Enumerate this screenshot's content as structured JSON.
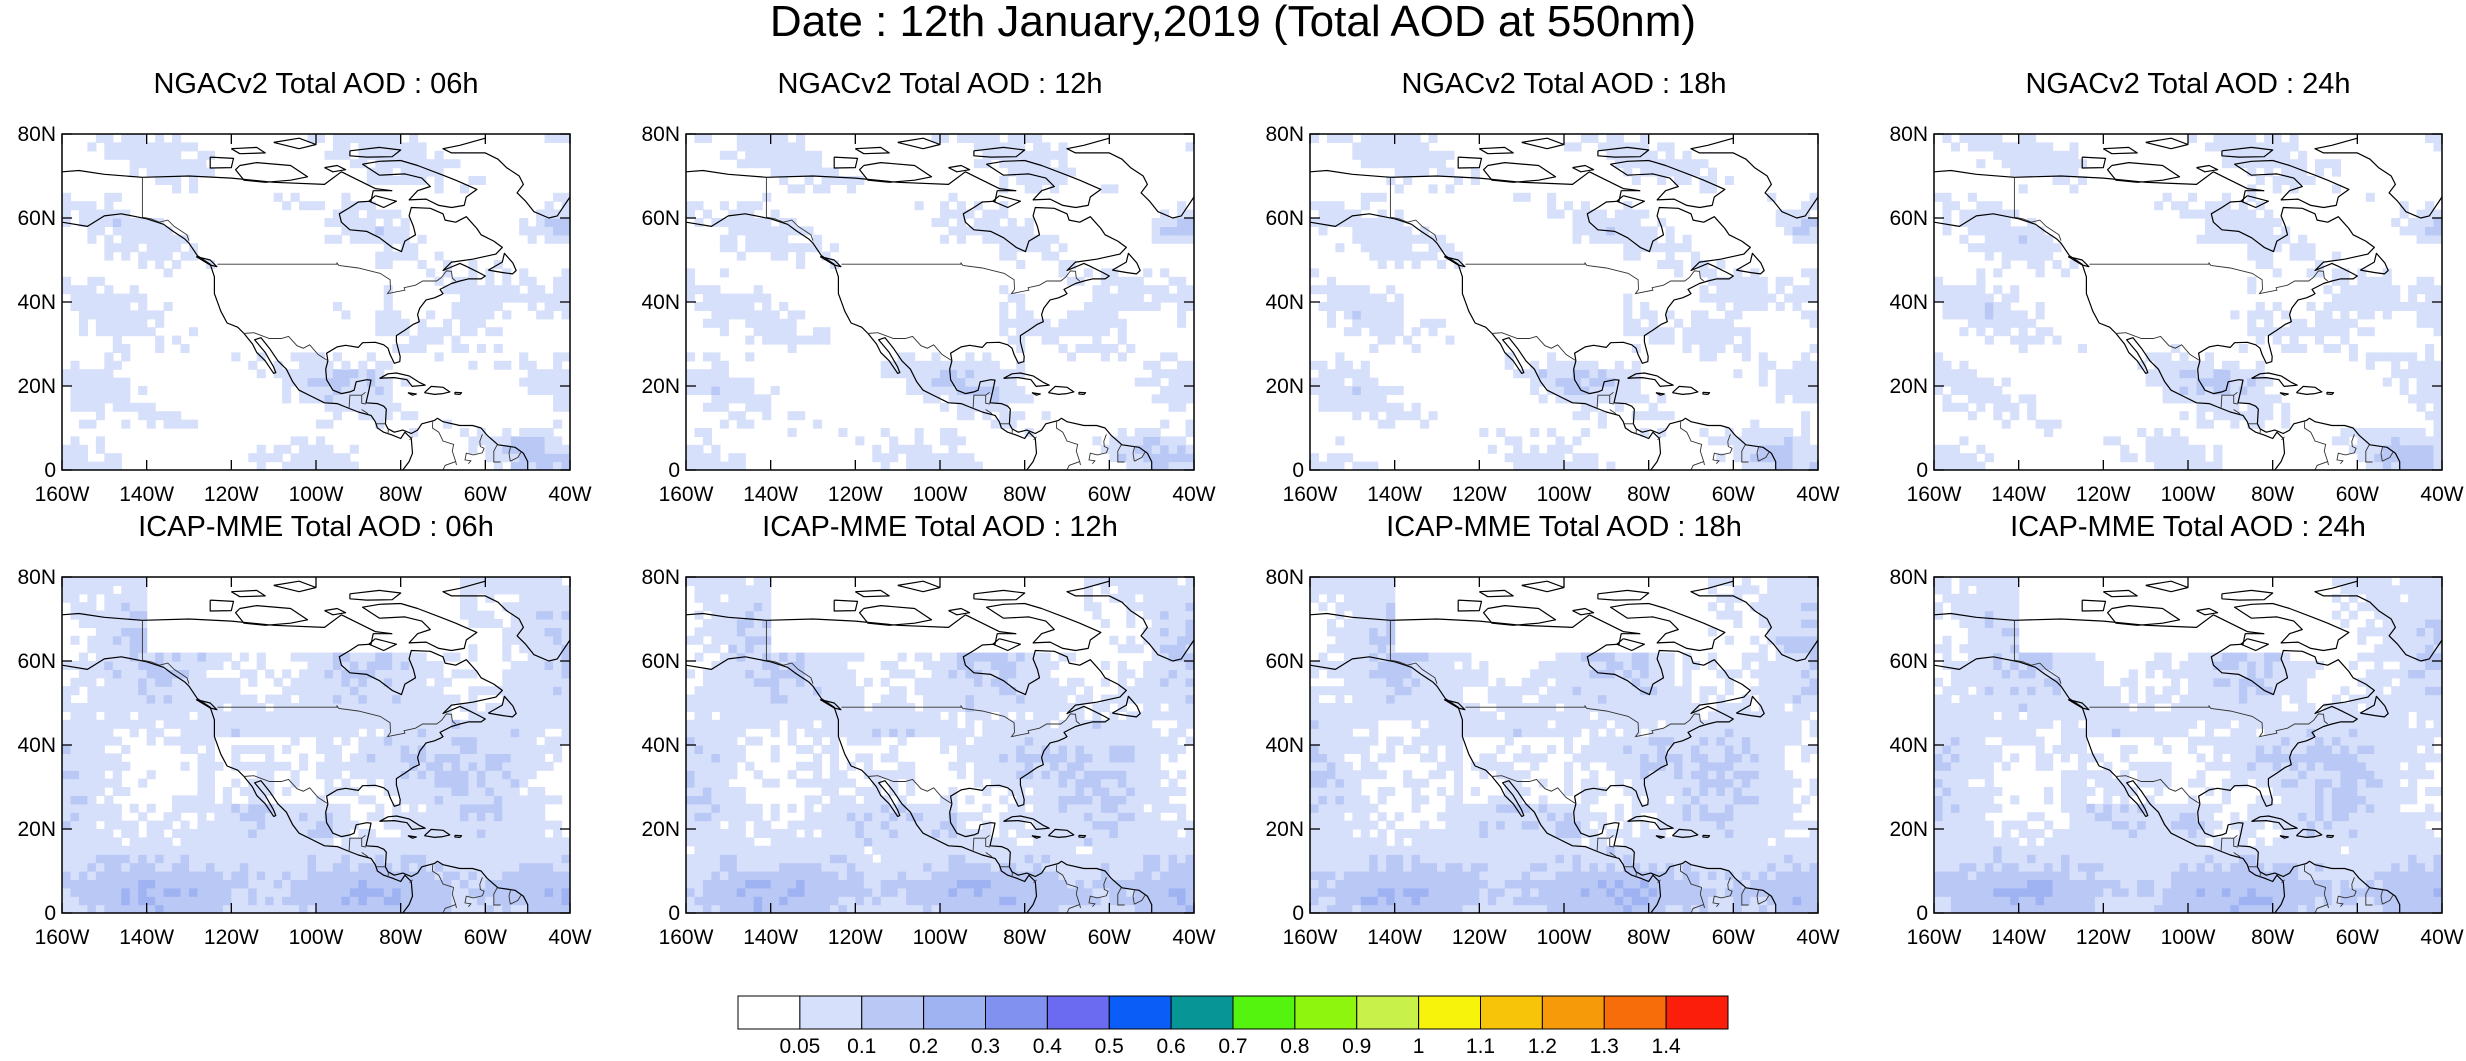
{
  "title": "Date : 12th January,2019 (Total AOD at 550nm)",
  "panels": [
    {
      "title": "NGACv2 Total AOD : 06h",
      "row": 0,
      "col": 0,
      "seed": 11,
      "model": "ngac"
    },
    {
      "title": "NGACv2 Total AOD : 12h",
      "row": 0,
      "col": 1,
      "seed": 23,
      "model": "ngac"
    },
    {
      "title": "NGACv2 Total AOD : 18h",
      "row": 0,
      "col": 2,
      "seed": 37,
      "model": "ngac"
    },
    {
      "title": "NGACv2 Total AOD : 24h",
      "row": 0,
      "col": 3,
      "seed": 41,
      "model": "ngac"
    },
    {
      "title": "ICAP-MME Total AOD : 06h",
      "row": 1,
      "col": 0,
      "seed": 53,
      "model": "icap"
    },
    {
      "title": "ICAP-MME Total AOD : 12h",
      "row": 1,
      "col": 1,
      "seed": 67,
      "model": "icap"
    },
    {
      "title": "ICAP-MME Total AOD : 18h",
      "row": 1,
      "col": 2,
      "seed": 71,
      "model": "icap"
    },
    {
      "title": "ICAP-MME Total AOD : 24h",
      "row": 1,
      "col": 3,
      "seed": 89,
      "model": "icap"
    }
  ],
  "axes": {
    "lon_ticks": [
      "160W",
      "140W",
      "120W",
      "100W",
      "80W",
      "60W",
      "40W"
    ],
    "lat_ticks": [
      "80N",
      "60N",
      "40N",
      "20N",
      "0"
    ],
    "lon_range": [
      -160,
      -40
    ],
    "lat_range": [
      0,
      80
    ]
  },
  "colorbar": {
    "labels": [
      "0.05",
      "0.1",
      "0.2",
      "0.3",
      "0.4",
      "0.5",
      "0.6",
      "0.7",
      "0.8",
      "0.9",
      "1",
      "1.1",
      "1.2",
      "1.3",
      "1.4"
    ],
    "colors": [
      "#ffffff",
      "#d7e0fb",
      "#b9c8f5",
      "#9fb3f2",
      "#8191ef",
      "#6a6bf0",
      "#0a5ef7",
      "#079595",
      "#54f40f",
      "#8ef50f",
      "#c8f14a",
      "#f7f30a",
      "#f7c40a",
      "#f79a0a",
      "#f76d0a",
      "#fb1e0a"
    ]
  }
}
